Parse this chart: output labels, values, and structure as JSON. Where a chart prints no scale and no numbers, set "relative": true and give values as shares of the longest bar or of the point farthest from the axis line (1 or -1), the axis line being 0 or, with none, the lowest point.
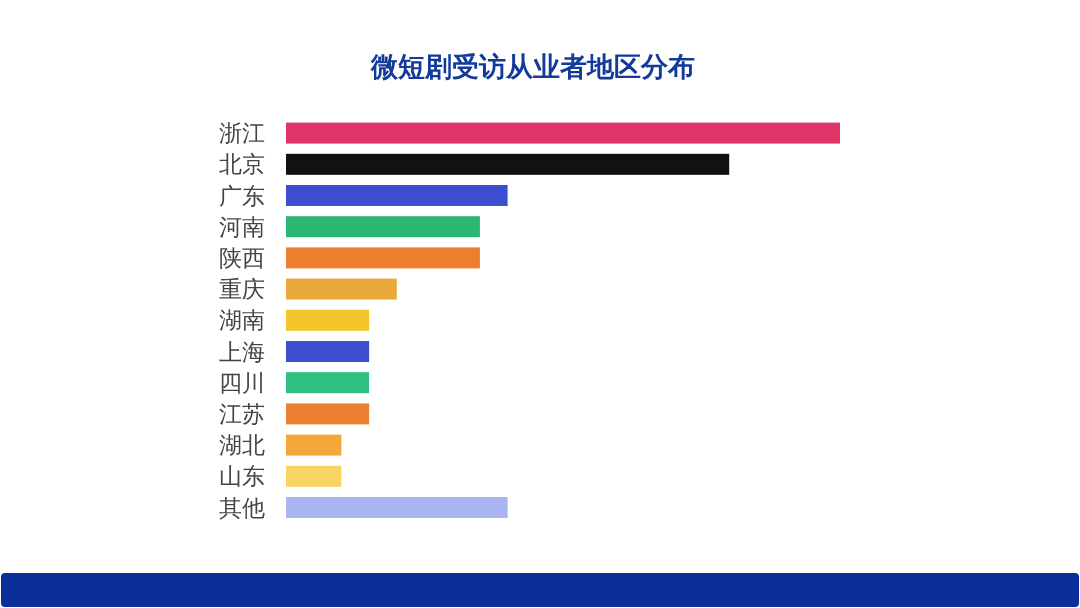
{
  "chart_data": {
    "type": "bar",
    "orientation": "horizontal",
    "relative": true,
    "title": "微短剧受访从业者地区分布",
    "categories": [
      "浙江",
      "北京",
      "广东",
      "河南",
      "陕西",
      "重庆",
      "湖南",
      "上海",
      "四川",
      "江苏",
      "湖北",
      "山东",
      "其他"
    ],
    "values": [
      1,
      0.8,
      0.4,
      0.35,
      0.35,
      0.2,
      0.15,
      0.15,
      0.15,
      0.15,
      0.1,
      0.1,
      0.4
    ],
    "colors": [
      "#de3468",
      "#111111",
      "#3d4fd1",
      "#2bb673",
      "#ec7f2f",
      "#eaa93a",
      "#f2c52a",
      "#3d4fd1",
      "#2fbf7e",
      "#ec7f2f",
      "#f3a93a",
      "#f8d463",
      "#aab4f0"
    ]
  }
}
